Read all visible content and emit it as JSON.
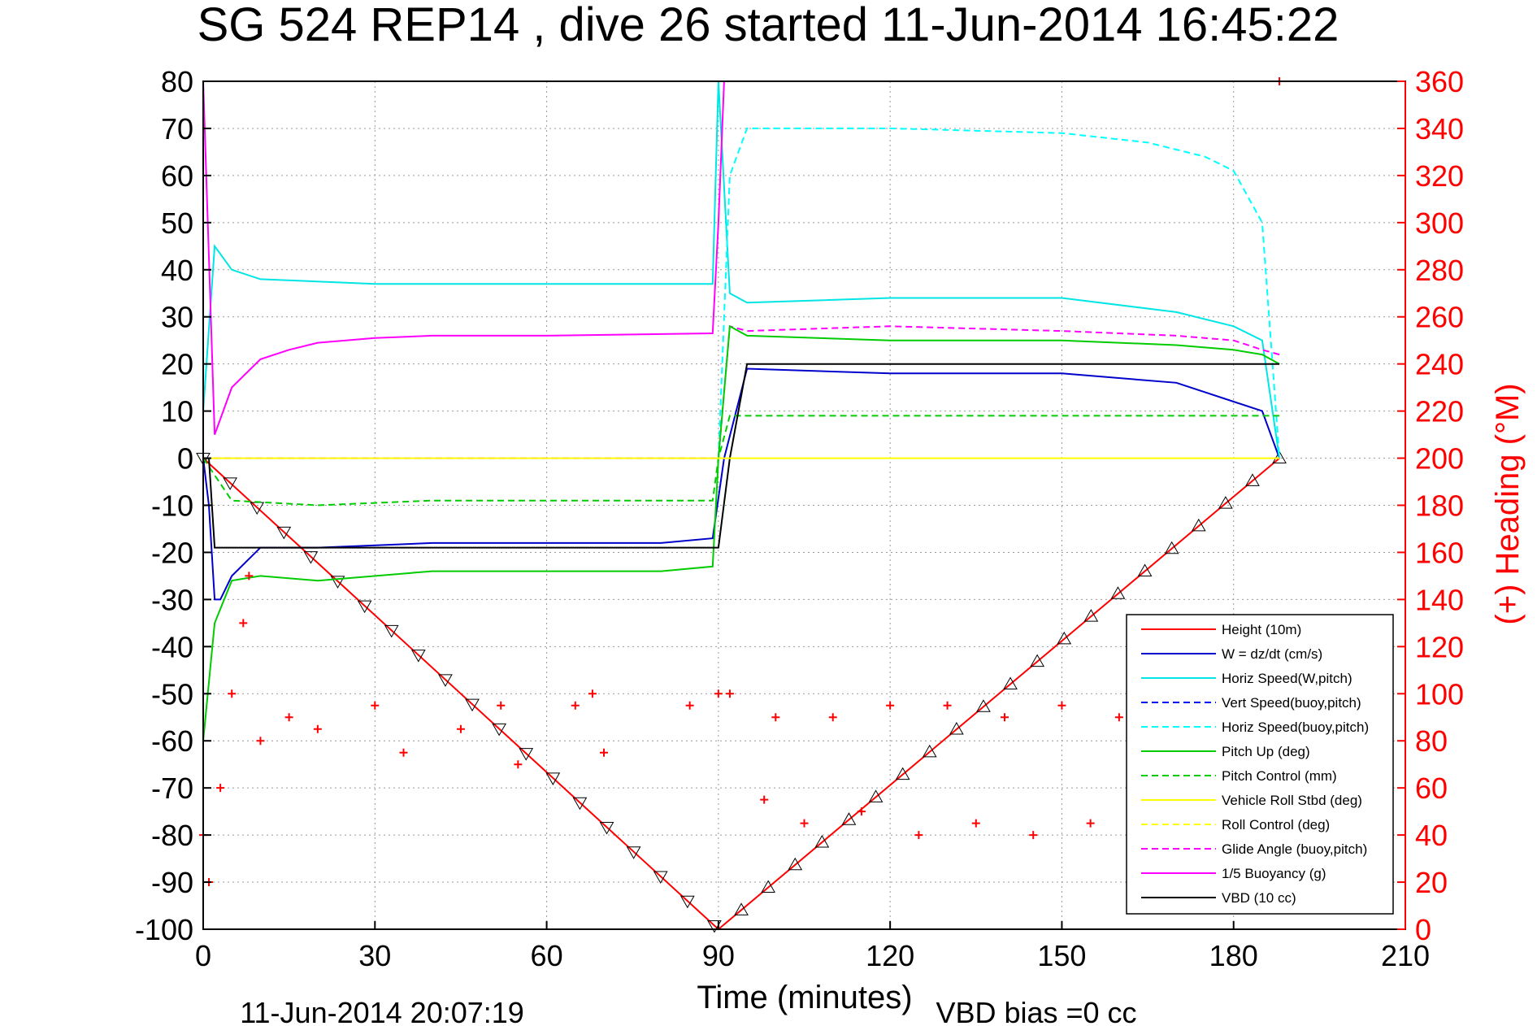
{
  "chart_data": {
    "type": "line",
    "title": "SG 524   REP14  , dive 26 started 11-Jun-2014 16:45:22",
    "xlabel": "Time (minutes)",
    "ylabel_right": "(+) Heading (°M)",
    "footer_left": "11-Jun-2014 20:07:19",
    "footer_right": "VBD bias =0 cc",
    "xlim": [
      0,
      210
    ],
    "ylim": [
      -100,
      80
    ],
    "ylim_right": [
      0,
      360
    ],
    "x_ticks": [
      "0",
      "30",
      "60",
      "90",
      "120",
      "150",
      "180",
      "210"
    ],
    "y_ticks": [
      "80",
      "70",
      "60",
      "50",
      "40",
      "30",
      "20",
      "10",
      "0",
      "-10",
      "-20",
      "-30",
      "-40",
      "-50",
      "-60",
      "-70",
      "-80",
      "-90",
      "-100"
    ],
    "y_right_ticks": [
      "360",
      "340",
      "320",
      "300",
      "280",
      "260",
      "240",
      "220",
      "200",
      "180",
      "160",
      "140",
      "120",
      "100",
      "80",
      "60",
      "40",
      "20",
      "0"
    ],
    "grid": true,
    "legend_position": "lower-right",
    "legend": [
      {
        "name": "Height (10m)",
        "color": "#ff0000",
        "style": "solid"
      },
      {
        "name": "W = dz/dt (cm/s)",
        "color": "#0000cc",
        "style": "solid"
      },
      {
        "name": "Horiz Speed(W,pitch)",
        "color": "#00e5e5",
        "style": "solid"
      },
      {
        "name": "Vert Speed(buoy,pitch)",
        "color": "#0000ff",
        "style": "dashed"
      },
      {
        "name": "Horiz Speed(buoy,pitch)",
        "color": "#00ffff",
        "style": "dashed"
      },
      {
        "name": "Pitch Up (deg)",
        "color": "#00cc00",
        "style": "solid"
      },
      {
        "name": "Pitch Control (mm)",
        "color": "#00cc00",
        "style": "dashed"
      },
      {
        "name": "Vehicle Roll Stbd (deg)",
        "color": "#ffff00",
        "style": "solid"
      },
      {
        "name": "Roll Control (deg)",
        "color": "#ffff00",
        "style": "dashed"
      },
      {
        "name": "Glide Angle (buoy,pitch)",
        "color": "#ff00ff",
        "style": "dashed"
      },
      {
        "name": "1/5 Buoyancy (g)",
        "color": "#ff00ff",
        "style": "solid"
      },
      {
        "name": "VBD (10 cc)",
        "color": "#000000",
        "style": "solid"
      }
    ],
    "series": [
      {
        "name": "Height (10m)",
        "x": [
          0,
          90,
          188
        ],
        "y": [
          0,
          -100,
          0
        ]
      },
      {
        "name": "W = dz/dt (cm/s)",
        "x": [
          0,
          1,
          2,
          3,
          5,
          10,
          20,
          40,
          60,
          80,
          89,
          91,
          95,
          120,
          150,
          170,
          180,
          185,
          188
        ],
        "y": [
          0,
          -10,
          -30,
          -30,
          -25,
          -19,
          -19,
          -18,
          -18,
          -18,
          -17,
          0,
          19,
          18,
          18,
          16,
          12,
          10,
          0
        ]
      },
      {
        "name": "Horiz Speed(W,pitch)",
        "x": [
          0,
          2,
          5,
          10,
          30,
          60,
          89,
          90,
          92,
          95,
          120,
          150,
          170,
          180,
          185,
          188
        ],
        "y": [
          10,
          45,
          40,
          38,
          37,
          37,
          37,
          80,
          35,
          33,
          34,
          34,
          31,
          28,
          25,
          0
        ]
      },
      {
        "name": "Horiz Speed(buoy,pitch)",
        "x": [
          90,
          92,
          95,
          120,
          150,
          165,
          175,
          180,
          185,
          188
        ],
        "y": [
          0,
          60,
          70,
          70,
          69,
          67,
          64,
          61,
          50,
          0
        ]
      },
      {
        "name": "Glide Angle (buoy,pitch)",
        "x": [
          0,
          89,
          90,
          92,
          95,
          120,
          150,
          170,
          180,
          185,
          188
        ],
        "y": [
          0,
          0,
          0,
          28,
          27,
          28,
          27,
          26,
          25,
          23,
          22
        ]
      },
      {
        "name": "Pitch Up (deg)",
        "x": [
          0,
          2,
          5,
          10,
          20,
          40,
          60,
          80,
          89,
          90,
          92,
          95,
          120,
          150,
          170,
          180,
          185,
          188
        ],
        "y": [
          -60,
          -35,
          -26,
          -25,
          -26,
          -24,
          -24,
          -24,
          -23,
          0,
          28,
          26,
          25,
          25,
          24,
          23,
          22,
          20
        ]
      },
      {
        "name": "Pitch Control (mm)",
        "x": [
          0,
          5,
          20,
          40,
          60,
          80,
          89,
          90,
          92,
          120,
          150,
          188
        ],
        "y": [
          0,
          -9,
          -10,
          -9,
          -9,
          -9,
          -9,
          0,
          9,
          9,
          9,
          9
        ]
      },
      {
        "name": "VBD (10 cc)",
        "x": [
          0,
          1,
          2,
          89,
          90,
          92,
          95,
          188
        ],
        "y": [
          0,
          0,
          -19,
          -19,
          -19,
          0,
          20,
          20
        ]
      },
      {
        "name": "1/5 Buoyancy (g)",
        "x": [
          0,
          2,
          5,
          10,
          15,
          20,
          30,
          40,
          60,
          89,
          90,
          91
        ],
        "y": [
          80,
          5,
          15,
          21,
          23,
          24.5,
          25.5,
          26,
          26,
          26.5,
          50,
          80
        ]
      },
      {
        "name": "Vehicle Roll Stbd (deg)",
        "x": [
          0,
          5,
          30,
          60,
          90,
          95,
          120,
          150,
          188
        ],
        "y": [
          0,
          0,
          0,
          0,
          0,
          0,
          0,
          0,
          0
        ]
      },
      {
        "name": "Heading",
        "x": [
          0,
          1,
          3,
          5,
          7,
          8,
          10,
          15,
          20,
          30,
          35,
          45,
          52,
          55,
          65,
          68,
          70,
          85,
          90,
          92,
          98,
          100,
          105,
          110,
          115,
          120,
          125,
          130,
          135,
          140,
          145,
          150,
          155,
          160,
          165,
          170,
          175,
          180,
          188
        ],
        "y": [
          40,
          20,
          60,
          100,
          130,
          150,
          80,
          90,
          85,
          95,
          75,
          85,
          95,
          70,
          95,
          100,
          75,
          95,
          100,
          100,
          55,
          90,
          45,
          90,
          50,
          95,
          40,
          95,
          45,
          90,
          40,
          95,
          45,
          90,
          55,
          90,
          60,
          80,
          360
        ]
      }
    ]
  }
}
